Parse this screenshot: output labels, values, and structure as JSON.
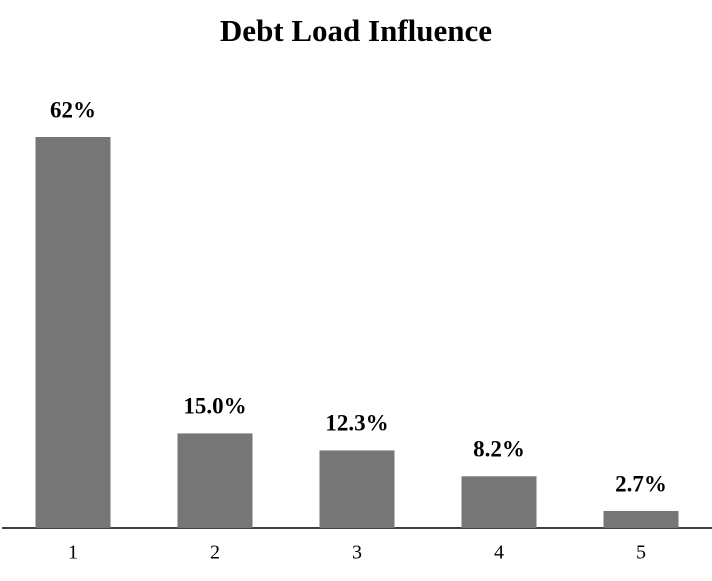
{
  "chart_data": {
    "type": "bar",
    "title": "Debt Load Influence",
    "categories": [
      "1",
      "2",
      "3",
      "4",
      "5"
    ],
    "values": [
      62,
      15.0,
      12.3,
      8.2,
      2.7
    ],
    "value_labels": [
      "62%",
      "15.0%",
      "12.3%",
      "8.2%",
      "2.7%"
    ],
    "color": "#767676"
  }
}
